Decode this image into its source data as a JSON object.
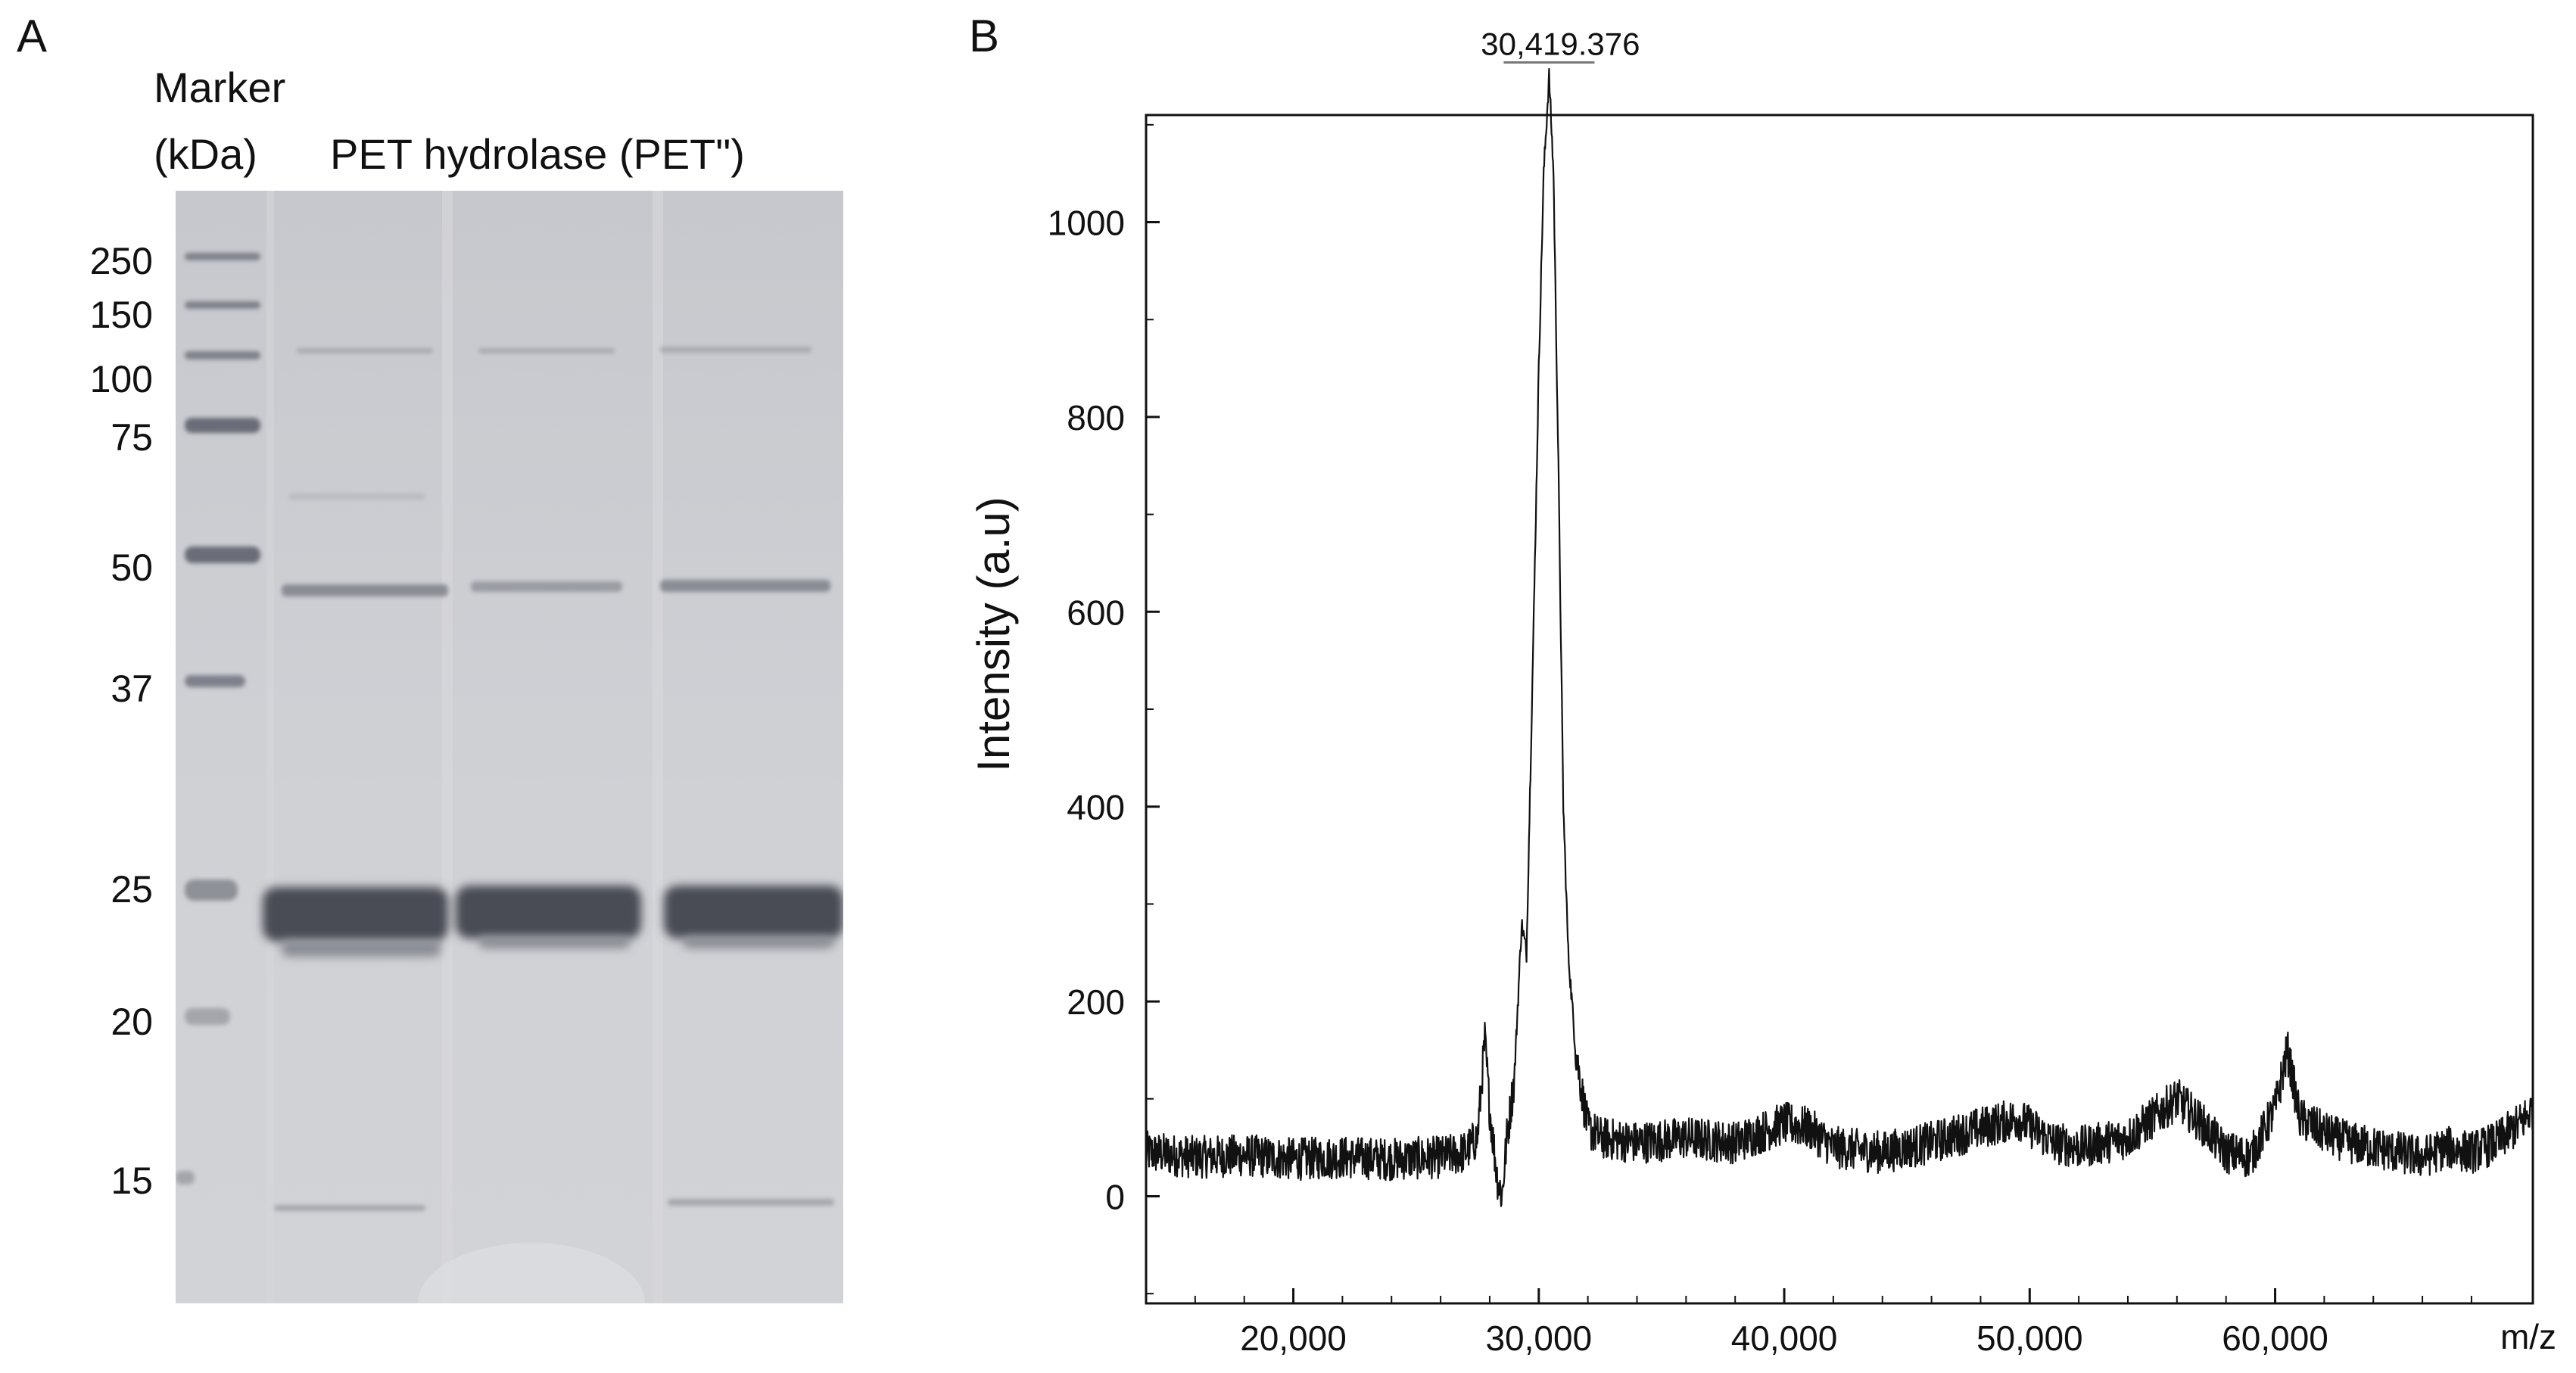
{
  "panel_a": {
    "letter": "A",
    "marker_label_line1": "Marker",
    "marker_label_line2": "(kDa)",
    "lanes_label": "PET hydrolase (PET\")",
    "marker_sizes": [
      "250",
      "150",
      "100",
      "75",
      "50",
      "37",
      "25",
      "20",
      "15"
    ],
    "gel_colors": {
      "background": "#c9cbd0",
      "band": "#4c4d56",
      "marker": "#8a8c94"
    }
  },
  "panel_b": {
    "letter": "B"
  },
  "chart_data": {
    "type": "line",
    "title": "",
    "xlabel": "m/z",
    "ylabel": "Intensity (a.u)",
    "xlim": [
      14000,
      70500
    ],
    "ylim": [
      -110,
      1110
    ],
    "x_ticks": [
      20000,
      30000,
      40000,
      50000,
      60000
    ],
    "x_tick_labels": [
      "20,000",
      "30,000",
      "40,000",
      "50,000",
      "60,000"
    ],
    "y_ticks": [
      0,
      200,
      400,
      600,
      800,
      1000
    ],
    "y_tick_labels": [
      "0",
      "200",
      "400",
      "600",
      "800",
      "1000"
    ],
    "grid": false,
    "peak_annotation": {
      "label": "30,419.376",
      "x": 30419.376,
      "y": 1150
    },
    "series": [
      {
        "color": "#111111",
        "x": [
          14000,
          16000,
          18000,
          20000,
          22000,
          24000,
          26000,
          27000,
          27500,
          27800,
          28000,
          28300,
          28500,
          28700,
          29000,
          29300,
          29500,
          29800,
          30000,
          30200,
          30419,
          30600,
          30800,
          31000,
          31200,
          31500,
          31800,
          32000,
          32500,
          34000,
          36000,
          38000,
          40000,
          41000,
          42000,
          44000,
          46000,
          48000,
          49500,
          51000,
          52000,
          54000,
          55000,
          56000,
          57000,
          58000,
          59000,
          60000,
          60500,
          61000,
          62000,
          63000,
          64000,
          65000,
          66000,
          67000,
          68000,
          69000,
          70000,
          70500
        ],
        "y": [
          45,
          40,
          42,
          38,
          40,
          38,
          40,
          45,
          60,
          160,
          90,
          20,
          0,
          60,
          120,
          280,
          250,
          600,
          850,
          1050,
          1150,
          1050,
          750,
          400,
          250,
          150,
          100,
          70,
          60,
          55,
          60,
          55,
          75,
          70,
          50,
          45,
          55,
          70,
          80,
          55,
          50,
          60,
          80,
          100,
          75,
          45,
          40,
          90,
          150,
          80,
          65,
          55,
          50,
          45,
          40,
          50,
          45,
          55,
          75,
          90
        ]
      }
    ]
  }
}
